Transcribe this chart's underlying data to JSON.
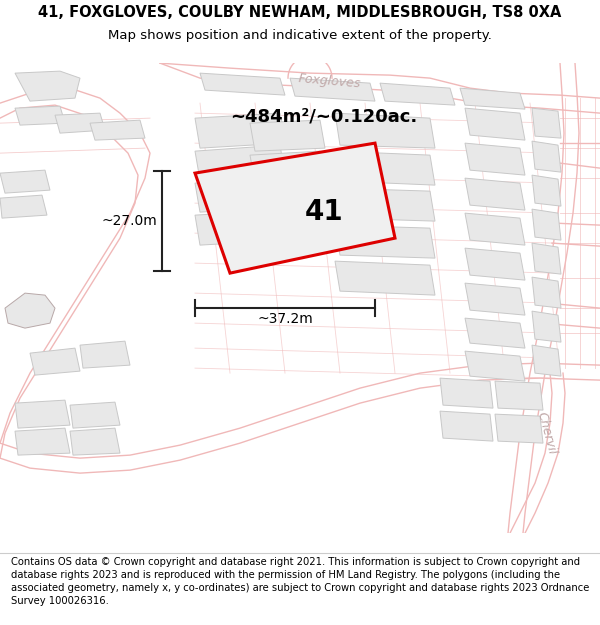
{
  "title_line1": "41, FOXGLOVES, COULBY NEWHAM, MIDDLESBROUGH, TS8 0XA",
  "title_line2": "Map shows position and indicative extent of the property.",
  "area_text": "~484m²/~0.120ac.",
  "width_text": "~37.2m",
  "height_text": "~27.0m",
  "property_label": "41",
  "map_bg": "#ffffff",
  "road_color": "#f0b8b8",
  "road_lw": 1.0,
  "building_fill": "#e8e8e8",
  "building_edge": "#c8c8c8",
  "building_lw": 0.7,
  "highlight_color": "#dd0000",
  "highlight_lw": 2.2,
  "street_color": "#c0a8a8",
  "street_fontsize": 9,
  "dim_color": "#222222",
  "dim_lw": 1.5,
  "title_fontsize": 10.5,
  "subtitle_fontsize": 9.5,
  "area_fontsize": 13,
  "label_fontsize": 20,
  "dim_fontsize": 10,
  "footer_fontsize": 7.2,
  "footer_lines": [
    "Contains OS data © Crown copyright and database right 2021. This information is subject to Crown copyright and database rights 2023 and is reproduced with the permission of",
    "HM Land Registry. The polygons (including the associated geometry, namely x, y co-ordinates) are subject to Crown copyright and database rights 2023 Ordnance Survey",
    "100026316."
  ]
}
